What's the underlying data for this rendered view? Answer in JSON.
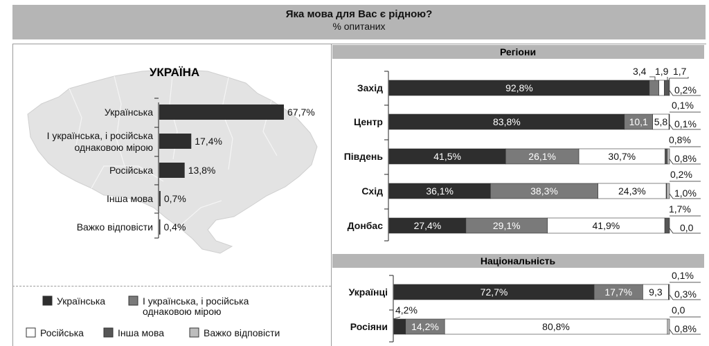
{
  "header": {
    "title": "Яка мова для Вас є рідною?",
    "subtitle": "% опитаних"
  },
  "colors": {
    "ukrainian": "#2e2e2e",
    "both": "#7a7a7a",
    "russian": "#ffffff",
    "other": "#565656",
    "hard": "#bdbdbd",
    "map": "#e3e3e3"
  },
  "legend": [
    {
      "label": "Українська",
      "color": "#2e2e2e"
    },
    {
      "label": "І українська, і російська однаковою мірою",
      "color": "#7a7a7a"
    },
    {
      "label": "Російська",
      "color": "#ffffff"
    },
    {
      "label": "Інша мова",
      "color": "#565656"
    },
    {
      "label": "Важко відповісти",
      "color": "#bdbdbd"
    }
  ],
  "chart_data": [
    {
      "type": "bar",
      "title": "УКРАЇНА",
      "categories": [
        "Українська",
        "І українська, і російська однаковою мірою",
        "Російська",
        "Інша мова",
        "Важко відповісти"
      ],
      "values": [
        67.7,
        17.4,
        13.8,
        0.7,
        0.4
      ],
      "value_labels": [
        "67,7%",
        "17,4%",
        "13,8%",
        "0,7%",
        "0,4%"
      ]
    },
    {
      "type": "bar",
      "title": "Регіони",
      "categories": [
        "Захід",
        "Центр",
        "Південь",
        "Схід",
        "Донбас"
      ],
      "series": [
        {
          "name": "Українська",
          "values": [
            92.8,
            83.8,
            41.5,
            36.1,
            27.4
          ],
          "labels": [
            "92,8%",
            "83,8%",
            "41,5%",
            "36,1%",
            "27,4%"
          ]
        },
        {
          "name": "І українська, і російська однаковою мірою",
          "values": [
            3.4,
            10.1,
            26.1,
            38.3,
            29.1
          ],
          "labels": [
            "3,4",
            "10,1",
            "26,1%",
            "38,3%",
            "29,1%"
          ]
        },
        {
          "name": "Російська",
          "values": [
            1.9,
            5.8,
            30.7,
            24.3,
            41.9
          ],
          "labels": [
            "1,9",
            "5,8",
            "30,7%",
            "24,3%",
            "41,9%"
          ]
        },
        {
          "name": "Інша мова",
          "values": [
            1.7,
            0.1,
            0.8,
            0.2,
            1.7
          ],
          "labels": [
            "1,7",
            "0,1%",
            "0,8%",
            "0,2%",
            "1,7%"
          ]
        },
        {
          "name": "Важко відповісти",
          "values": [
            0.2,
            0.1,
            0.8,
            1.0,
            0.0
          ],
          "labels": [
            "0,2%",
            "0,1%",
            "0,8%",
            "1,0%",
            "0,0"
          ]
        }
      ]
    },
    {
      "type": "bar",
      "title": "Національність",
      "categories": [
        "Українці",
        "Росіяни"
      ],
      "series": [
        {
          "name": "Українська",
          "values": [
            72.7,
            4.2
          ],
          "labels": [
            "72,7%",
            "4,2%"
          ]
        },
        {
          "name": "І українська, і російська однаковою мірою",
          "values": [
            17.7,
            14.2
          ],
          "labels": [
            "17,7%",
            "14,2%"
          ]
        },
        {
          "name": "Російська",
          "values": [
            9.3,
            80.8
          ],
          "labels": [
            "9,3",
            "80,8%"
          ]
        },
        {
          "name": "Інша мова",
          "values": [
            0.1,
            0.0
          ],
          "labels": [
            "0,1%",
            "0,0"
          ]
        },
        {
          "name": "Важко відповісти",
          "values": [
            0.3,
            0.8
          ],
          "labels": [
            "0,3%",
            "0,8%"
          ]
        }
      ]
    }
  ]
}
